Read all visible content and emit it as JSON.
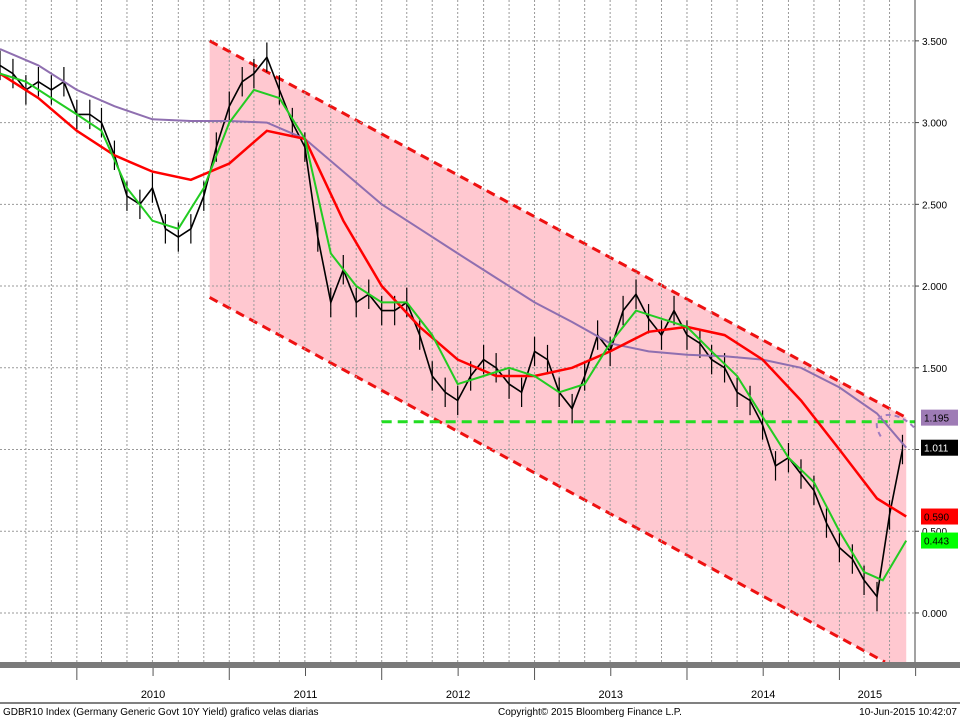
{
  "chart_data": {
    "type": "line",
    "y_scale": "linear",
    "ylim": [
      -0.3,
      3.75
    ],
    "xlim": [
      "2009-07-01",
      "2015-07-01"
    ],
    "grid": true,
    "y_axis_position": "right",
    "y_ticks": [
      "3.500",
      "3.000",
      "2.500",
      "2.000",
      "1.500",
      "1.000",
      "0.500",
      "0.000"
    ],
    "x_tick_labels": [
      "2010",
      "2011",
      "2012",
      "2013",
      "2014",
      "2015"
    ],
    "footer": {
      "left": "GDBR10 Index (Germany Generic Govt 10Y Yield) grafico velas diarias",
      "center": "Copyright© 2015 Bloomberg Finance L.P.",
      "right": "10-Jun-2015 10:42:07"
    },
    "last_value_tags": [
      {
        "label": "1.195",
        "value": 1.195,
        "color": "#9e7bb5",
        "text_color": "#000000"
      },
      {
        "label": "1.011",
        "value": 1.011,
        "color": "#000000",
        "text_color": "#ffffff"
      },
      {
        "label": "0.590",
        "value": 0.59,
        "color": "#ff0000",
        "text_color": "#000000"
      },
      {
        "label": "0.443",
        "value": 0.443,
        "color": "#00ff00",
        "text_color": "#000000"
      }
    ],
    "series": [
      {
        "kind": "candles",
        "color": "#000000",
        "x": [
          "2009-07-01",
          "2009-08-01",
          "2009-09-01",
          "2009-10-01",
          "2009-11-01",
          "2009-12-01",
          "2010-01-01",
          "2010-02-01",
          "2010-03-01",
          "2010-04-01",
          "2010-05-01",
          "2010-06-01",
          "2010-07-01",
          "2010-08-01",
          "2010-09-01",
          "2010-10-01",
          "2010-11-01",
          "2010-12-01",
          "2011-01-01",
          "2011-02-01",
          "2011-03-01",
          "2011-04-01",
          "2011-05-01",
          "2011-06-01",
          "2011-07-01",
          "2011-08-01",
          "2011-09-01",
          "2011-10-01",
          "2011-11-01",
          "2011-12-01",
          "2012-01-01",
          "2012-02-01",
          "2012-03-01",
          "2012-04-01",
          "2012-05-01",
          "2012-06-01",
          "2012-07-01",
          "2012-08-01",
          "2012-09-01",
          "2012-10-01",
          "2012-11-01",
          "2012-12-01",
          "2013-01-01",
          "2013-02-01",
          "2013-03-01",
          "2013-04-01",
          "2013-05-01",
          "2013-06-01",
          "2013-07-01",
          "2013-08-01",
          "2013-09-01",
          "2013-10-01",
          "2013-11-01",
          "2013-12-01",
          "2014-01-01",
          "2014-02-01",
          "2014-03-01",
          "2014-04-01",
          "2014-05-01",
          "2014-06-01",
          "2014-07-01",
          "2014-08-01",
          "2014-09-01",
          "2014-10-01",
          "2014-11-01",
          "2014-12-01",
          "2015-01-01",
          "2015-02-01",
          "2015-03-01",
          "2015-04-01",
          "2015-05-01",
          "2015-06-01"
        ],
        "values": [
          3.35,
          3.3,
          3.2,
          3.25,
          3.2,
          3.25,
          3.05,
          3.05,
          3.0,
          2.8,
          2.55,
          2.5,
          2.6,
          2.35,
          2.3,
          2.35,
          2.55,
          2.85,
          3.1,
          3.25,
          3.3,
          3.4,
          3.2,
          3.0,
          2.85,
          2.3,
          1.9,
          2.1,
          1.9,
          1.95,
          1.85,
          1.85,
          1.9,
          1.7,
          1.45,
          1.35,
          1.3,
          1.45,
          1.55,
          1.5,
          1.4,
          1.35,
          1.6,
          1.55,
          1.35,
          1.25,
          1.45,
          1.7,
          1.6,
          1.85,
          1.95,
          1.8,
          1.7,
          1.85,
          1.7,
          1.65,
          1.55,
          1.5,
          1.35,
          1.3,
          1.15,
          0.9,
          0.95,
          0.85,
          0.75,
          0.55,
          0.4,
          0.33,
          0.2,
          0.1,
          0.6,
          1.0
        ]
      },
      {
        "name": "",
        "kind": "moving-average",
        "color": "#8f6fb0",
        "x": [
          "2009-07-01",
          "2009-10-01",
          "2010-01-01",
          "2010-04-01",
          "2010-07-01",
          "2010-10-01",
          "2011-01-01",
          "2011-04-01",
          "2011-07-01",
          "2011-10-01",
          "2012-01-01",
          "2012-04-01",
          "2012-07-01",
          "2012-10-01",
          "2013-01-01",
          "2013-04-01",
          "2013-07-01",
          "2013-10-01",
          "2014-01-01",
          "2014-04-01",
          "2014-07-01",
          "2014-10-01",
          "2015-01-01",
          "2015-04-01",
          "2015-06-10"
        ],
        "values": [
          3.45,
          3.35,
          3.2,
          3.1,
          3.02,
          3.01,
          3.01,
          3.0,
          2.9,
          2.7,
          2.5,
          2.35,
          2.2,
          2.05,
          1.9,
          1.78,
          1.65,
          1.6,
          1.58,
          1.57,
          1.55,
          1.5,
          1.38,
          1.22,
          1.011
        ]
      },
      {
        "name": "",
        "kind": "moving-average",
        "color": "#ff0000",
        "x": [
          "2009-07-01",
          "2009-10-01",
          "2010-01-01",
          "2010-04-01",
          "2010-07-01",
          "2010-10-01",
          "2011-01-01",
          "2011-04-01",
          "2011-07-01",
          "2011-10-01",
          "2012-01-01",
          "2012-04-01",
          "2012-07-01",
          "2012-10-01",
          "2013-01-01",
          "2013-04-01",
          "2013-07-01",
          "2013-10-01",
          "2014-01-01",
          "2014-04-01",
          "2014-07-01",
          "2014-10-01",
          "2015-01-01",
          "2015-04-01",
          "2015-06-10"
        ],
        "values": [
          3.3,
          3.15,
          2.95,
          2.8,
          2.7,
          2.65,
          2.75,
          2.95,
          2.9,
          2.4,
          2.0,
          1.75,
          1.55,
          1.45,
          1.45,
          1.5,
          1.6,
          1.72,
          1.75,
          1.7,
          1.55,
          1.3,
          1.0,
          0.7,
          0.59
        ]
      },
      {
        "name": "",
        "kind": "moving-average",
        "color": "#22cc22",
        "x": [
          "2009-07-01",
          "2009-09-01",
          "2009-11-01",
          "2010-01-01",
          "2010-03-01",
          "2010-05-01",
          "2010-07-01",
          "2010-09-01",
          "2010-11-01",
          "2011-01-01",
          "2011-03-01",
          "2011-05-01",
          "2011-07-01",
          "2011-09-01",
          "2011-11-01",
          "2012-01-01",
          "2012-03-01",
          "2012-05-01",
          "2012-07-01",
          "2012-09-01",
          "2012-11-01",
          "2013-01-01",
          "2013-03-01",
          "2013-05-01",
          "2013-07-01",
          "2013-09-01",
          "2013-11-01",
          "2014-01-01",
          "2014-03-01",
          "2014-05-01",
          "2014-07-01",
          "2014-09-01",
          "2014-11-01",
          "2015-01-01",
          "2015-03-01",
          "2015-04-15",
          "2015-06-10"
        ],
        "values": [
          3.3,
          3.25,
          3.15,
          3.05,
          2.95,
          2.6,
          2.4,
          2.35,
          2.6,
          3.0,
          3.2,
          3.15,
          2.9,
          2.2,
          2.0,
          1.9,
          1.9,
          1.7,
          1.4,
          1.45,
          1.5,
          1.45,
          1.35,
          1.4,
          1.65,
          1.85,
          1.8,
          1.75,
          1.6,
          1.45,
          1.2,
          0.95,
          0.8,
          0.5,
          0.25,
          0.2,
          0.443
        ]
      }
    ],
    "channel": {
      "color": "#ff9aaa",
      "border_color": "#ee1111",
      "upper": [
        [
          "2010-11-15",
          3.5
        ],
        [
          "2015-06-10",
          1.195
        ]
      ],
      "lower": [
        [
          "2010-11-15",
          1.93
        ],
        [
          "2015-04-20",
          -0.3
        ]
      ]
    },
    "support_line": {
      "value": 1.17,
      "color": "#22dd22",
      "start": "2012-01-01"
    },
    "arrow": {
      "from": [
        "2015-04-10",
        1.08
      ],
      "to": [
        "2015-06-10",
        1.011
      ],
      "color": "#a07cc0"
    }
  }
}
